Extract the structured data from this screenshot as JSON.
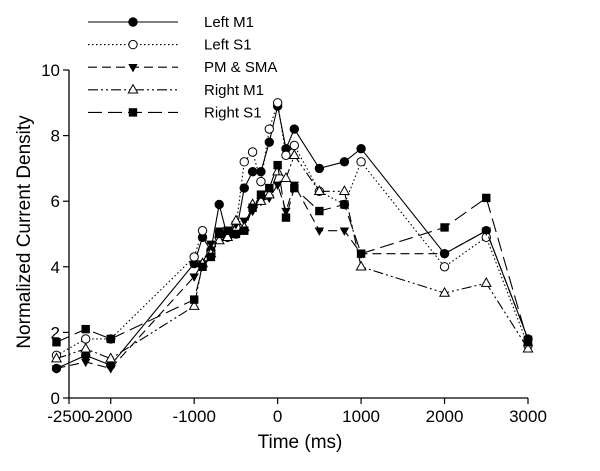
{
  "chart_data": {
    "type": "line",
    "title": "",
    "xlabel": "Time (ms)",
    "ylabel": "Normalized Current Density",
    "xlim": [
      -2500,
      3000
    ],
    "ylim": [
      0,
      10
    ],
    "xticks": [
      -2500,
      -2000,
      -1000,
      0,
      1000,
      2000,
      3000
    ],
    "yticks": [
      0,
      2,
      4,
      6,
      8,
      10
    ],
    "xtick_labels": [
      "-2500",
      "-2000",
      "-1000",
      "0",
      "1000",
      "2000",
      "3000"
    ],
    "ytick_labels": [
      "0",
      "2",
      "4",
      "6",
      "8",
      "10"
    ],
    "grid": false,
    "legend_position": "top-left",
    "series": [
      {
        "name": "Left M1",
        "line_style": "solid",
        "marker": "circle-filled",
        "points": [
          [
            -2650,
            0.9
          ],
          [
            -2300,
            1.3
          ],
          [
            -2000,
            1.0
          ],
          [
            -1000,
            4.1
          ],
          [
            -900,
            4.9
          ],
          [
            -800,
            4.5
          ],
          [
            -700,
            5.9
          ],
          [
            -600,
            4.9
          ],
          [
            -500,
            5.0
          ],
          [
            -400,
            6.4
          ],
          [
            -300,
            6.9
          ],
          [
            -200,
            6.9
          ],
          [
            -100,
            7.8
          ],
          [
            0,
            8.9
          ],
          [
            100,
            7.6
          ],
          [
            200,
            8.2
          ],
          [
            500,
            7.0
          ],
          [
            800,
            7.2
          ],
          [
            1000,
            7.6
          ],
          [
            2000,
            4.4
          ],
          [
            2500,
            5.1
          ],
          [
            3000,
            1.8
          ]
        ]
      },
      {
        "name": "Left S1",
        "line_style": "dotted",
        "marker": "circle-open",
        "points": [
          [
            -2650,
            1.3
          ],
          [
            -2300,
            1.8
          ],
          [
            -2000,
            1.8
          ],
          [
            -1000,
            4.3
          ],
          [
            -900,
            5.1
          ],
          [
            -800,
            4.4
          ],
          [
            -700,
            4.9
          ],
          [
            -600,
            5.0
          ],
          [
            -500,
            5.2
          ],
          [
            -400,
            7.2
          ],
          [
            -300,
            7.5
          ],
          [
            -200,
            6.6
          ],
          [
            -100,
            8.2
          ],
          [
            0,
            9.0
          ],
          [
            100,
            7.4
          ],
          [
            200,
            7.7
          ],
          [
            500,
            6.3
          ],
          [
            800,
            5.9
          ],
          [
            1000,
            7.2
          ],
          [
            2000,
            4.0
          ],
          [
            2500,
            4.9
          ],
          [
            3000,
            1.6
          ]
        ]
      },
      {
        "name": "PM & SMA",
        "line_style": "dashed",
        "marker": "triangle-down-filled",
        "points": [
          [
            -2650,
            0.9
          ],
          [
            -2300,
            1.1
          ],
          [
            -2000,
            0.9
          ],
          [
            -1000,
            3.7
          ],
          [
            -900,
            4.1
          ],
          [
            -800,
            4.7
          ],
          [
            -700,
            5.1
          ],
          [
            -600,
            4.9
          ],
          [
            -500,
            5.3
          ],
          [
            -400,
            5.4
          ],
          [
            -300,
            5.7
          ],
          [
            -200,
            6.0
          ],
          [
            -100,
            6.1
          ],
          [
            0,
            6.5
          ],
          [
            100,
            5.7
          ],
          [
            200,
            6.5
          ],
          [
            500,
            5.1
          ],
          [
            800,
            5.1
          ],
          [
            1000,
            4.4
          ],
          [
            2000,
            4.4
          ],
          [
            2500,
            5.1
          ],
          [
            3000,
            1.8
          ]
        ]
      },
      {
        "name": "Right M1",
        "line_style": "dash-dot",
        "marker": "triangle-up-open",
        "points": [
          [
            -2650,
            1.2
          ],
          [
            -2300,
            1.5
          ],
          [
            -2000,
            1.2
          ],
          [
            -1000,
            2.8
          ],
          [
            -900,
            4.1
          ],
          [
            -800,
            4.4
          ],
          [
            -700,
            4.8
          ],
          [
            -600,
            4.9
          ],
          [
            -500,
            5.4
          ],
          [
            -400,
            5.2
          ],
          [
            -300,
            5.9
          ],
          [
            -200,
            6.0
          ],
          [
            -100,
            6.2
          ],
          [
            0,
            6.9
          ],
          [
            100,
            6.7
          ],
          [
            200,
            7.4
          ],
          [
            500,
            6.3
          ],
          [
            800,
            6.3
          ],
          [
            1000,
            4.0
          ],
          [
            2000,
            3.2
          ],
          [
            2500,
            3.5
          ],
          [
            3000,
            1.5
          ]
        ]
      },
      {
        "name": "Right S1",
        "line_style": "long-dash",
        "marker": "square-filled",
        "points": [
          [
            -2650,
            1.7
          ],
          [
            -2300,
            2.1
          ],
          [
            -2000,
            1.8
          ],
          [
            -1000,
            3.0
          ],
          [
            -900,
            4.0
          ],
          [
            -800,
            4.3
          ],
          [
            -700,
            5.0
          ],
          [
            -600,
            5.1
          ],
          [
            -500,
            5.0
          ],
          [
            -400,
            5.1
          ],
          [
            -300,
            5.8
          ],
          [
            -200,
            6.2
          ],
          [
            -100,
            6.4
          ],
          [
            0,
            7.1
          ],
          [
            100,
            5.5
          ],
          [
            200,
            6.4
          ],
          [
            500,
            5.7
          ],
          [
            800,
            5.9
          ],
          [
            1000,
            4.4
          ],
          [
            2000,
            5.2
          ],
          [
            2500,
            6.1
          ],
          [
            3000,
            1.7
          ]
        ]
      }
    ]
  }
}
